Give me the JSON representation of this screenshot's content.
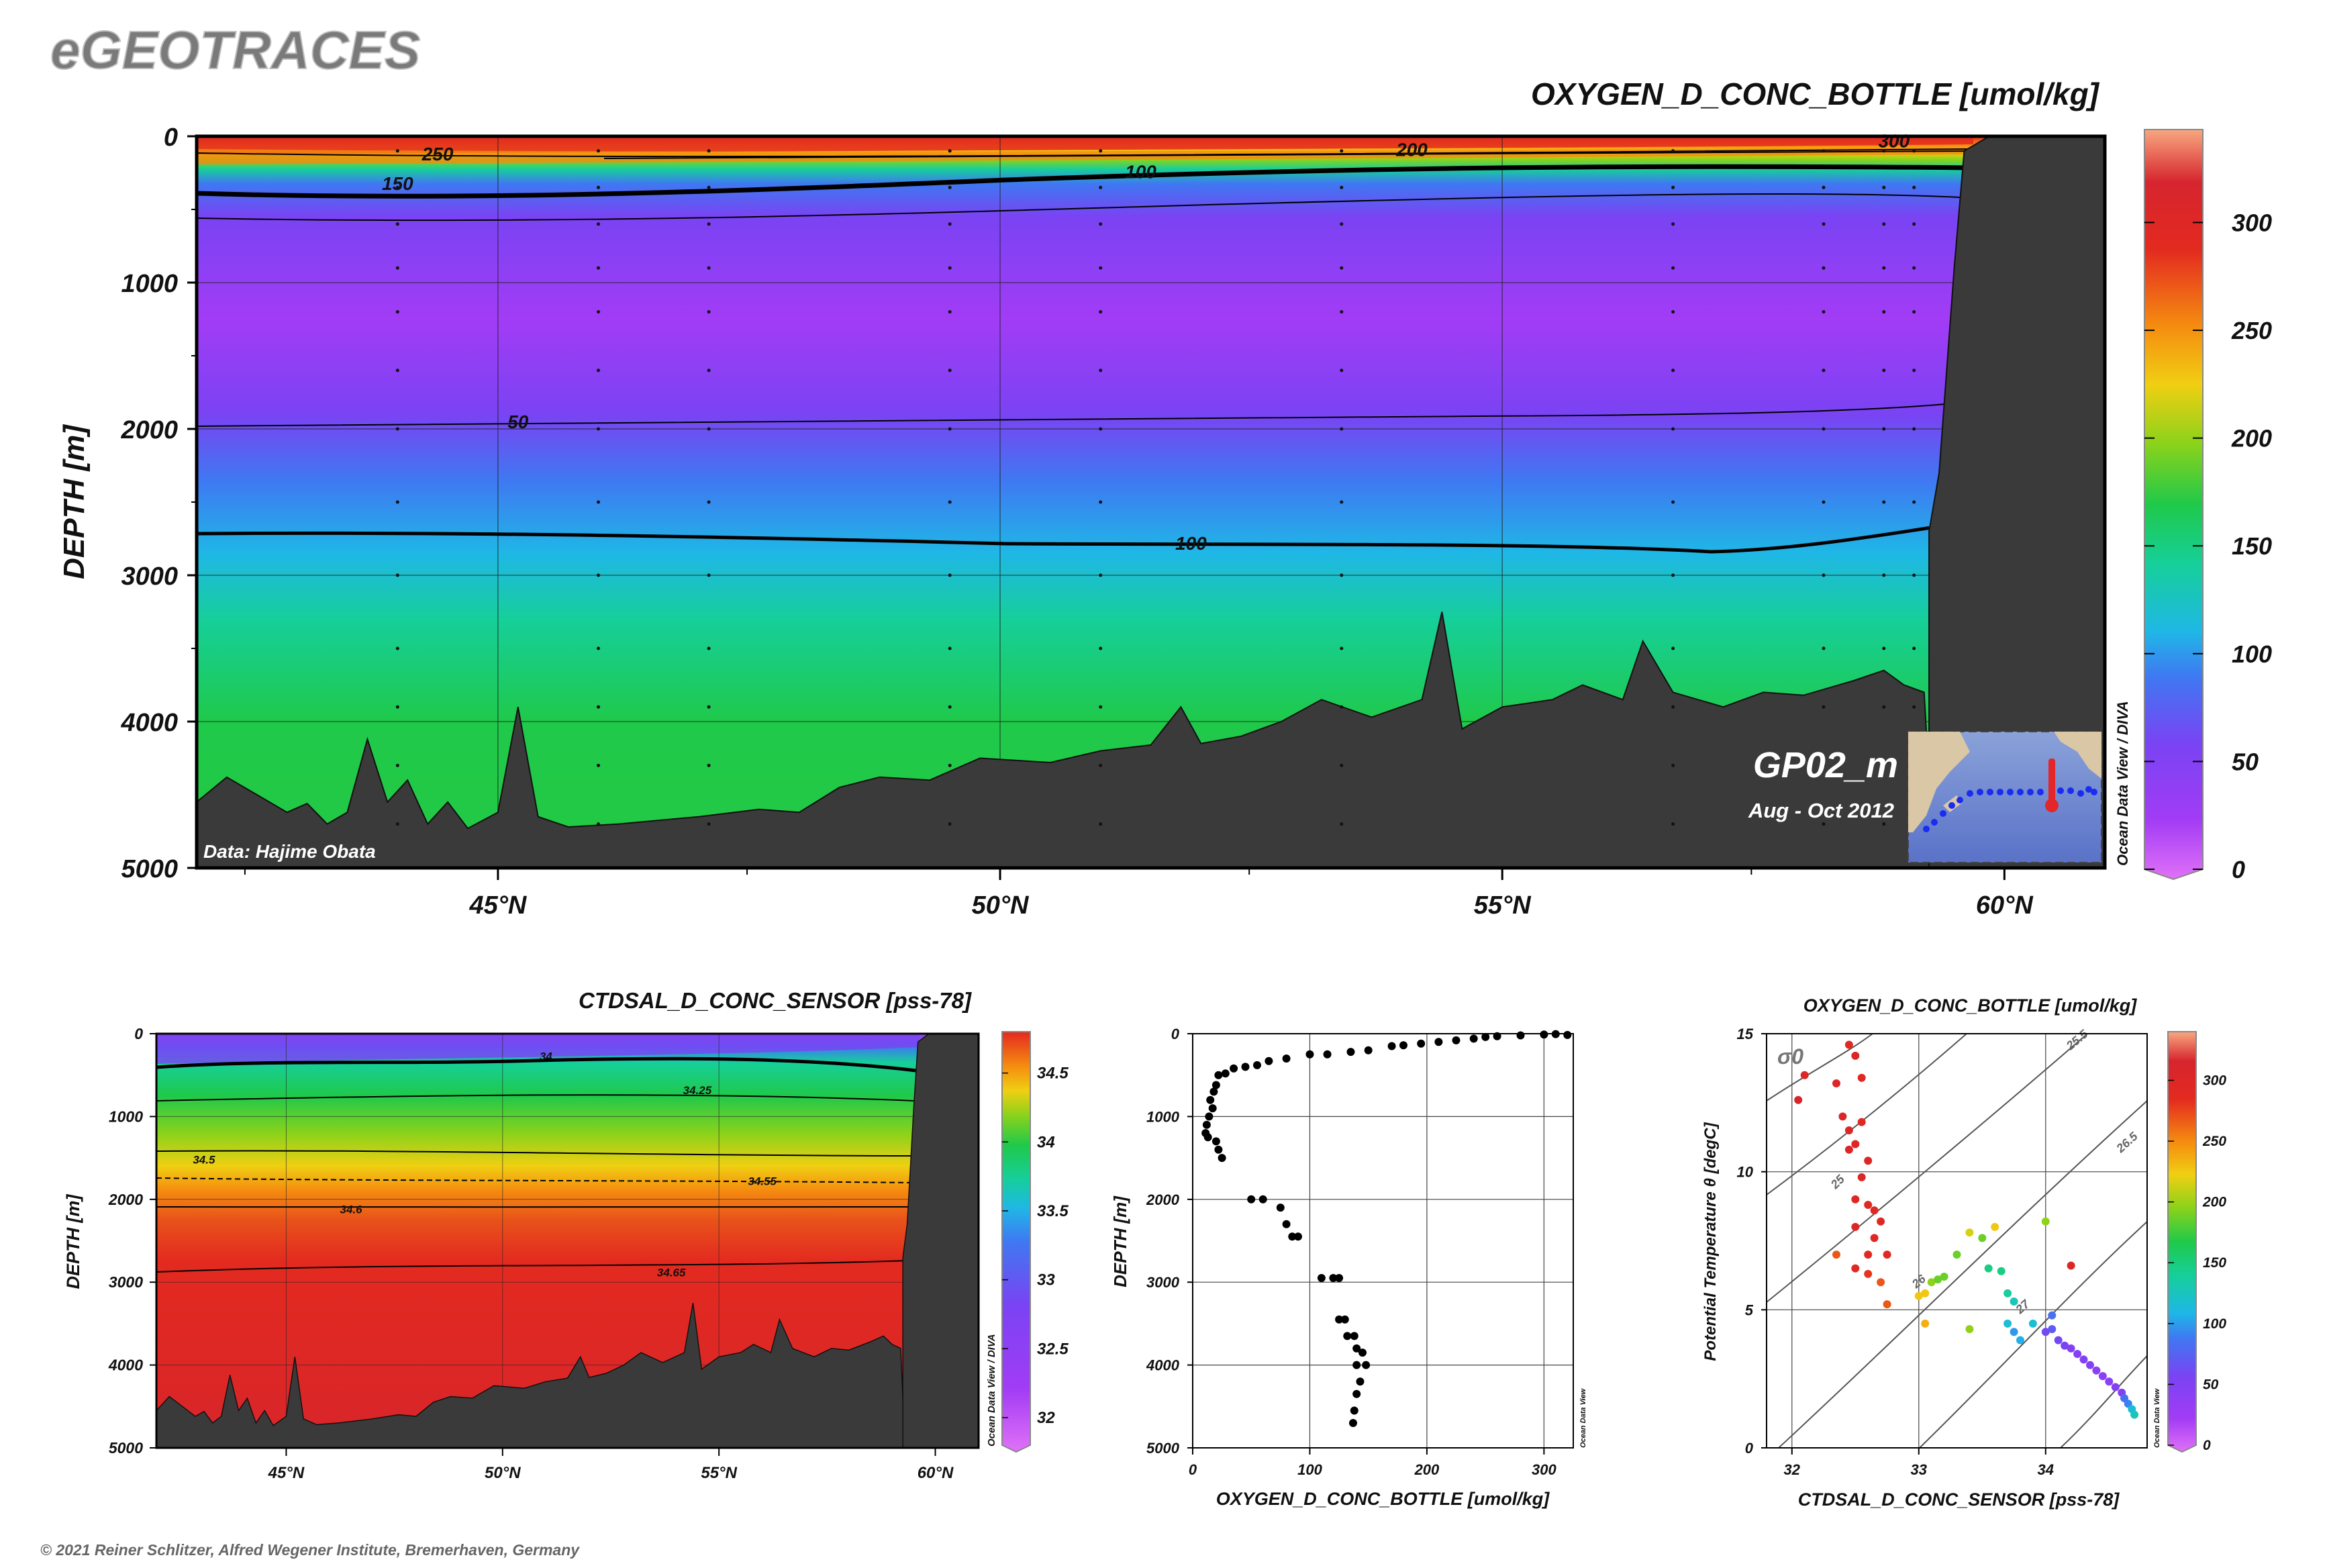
{
  "app": {
    "brand": "eGEOTRACES",
    "copyright": "© 2021 Reiner Schlitzer, Alfred Wegener Institute, Bremerhaven, Germany",
    "watermark": "Ocean Data View / DIVA",
    "watermark_small": "Ocean Data View"
  },
  "colors": {
    "land": "#3a3a3a",
    "scale": [
      "#e071f7",
      "#a23cf5",
      "#7a43f3",
      "#3f78f2",
      "#1fb7e6",
      "#16cf9a",
      "#1fc94a",
      "#8ad21b",
      "#f0cf12",
      "#f58a10",
      "#e32a20",
      "#d6252e",
      "#f8a880"
    ]
  },
  "chart_data": [
    {
      "id": "oxygen_section",
      "type": "heatmap",
      "title": "OXYGEN_D_CONC_BOTTLE [umol/kg]",
      "ylabel": "DEPTH [m]",
      "xlabel": "",
      "xlim": [
        42,
        61
      ],
      "ylim": [
        5000,
        0
      ],
      "x_ticks": [
        {
          "v": 45,
          "label": "45°N"
        },
        {
          "v": 50,
          "label": "50°N"
        },
        {
          "v": 55,
          "label": "55°N"
        },
        {
          "v": 60,
          "label": "60°N"
        }
      ],
      "y_ticks": [
        0,
        1000,
        2000,
        3000,
        4000,
        5000
      ],
      "colorbar": {
        "min": 0,
        "max": 340,
        "ticks": [
          0,
          50,
          100,
          150,
          200,
          250,
          300
        ]
      },
      "grid": true,
      "contour_labels": [
        {
          "text": "150",
          "x": 44.0,
          "depth": 320
        },
        {
          "text": "250",
          "x": 44.4,
          "depth": 120
        },
        {
          "text": "100",
          "x": 51.4,
          "depth": 240
        },
        {
          "text": "200",
          "x": 54.1,
          "depth": 90
        },
        {
          "text": "300",
          "x": 58.9,
          "depth": 30
        },
        {
          "text": "50",
          "x": 45.2,
          "depth": 1950
        },
        {
          "text": "100",
          "x": 51.9,
          "depth": 2780
        }
      ],
      "annotations": {
        "cruise": "GP02_m",
        "period": "Aug - Oct 2012",
        "credit": "Data: Hajime Obata"
      },
      "bottom_depth_profile": [
        [
          42.0,
          4550
        ],
        [
          42.3,
          4380
        ],
        [
          42.6,
          4500
        ],
        [
          42.9,
          4620
        ],
        [
          43.1,
          4560
        ],
        [
          43.3,
          4700
        ],
        [
          43.5,
          4620
        ],
        [
          43.7,
          4120
        ],
        [
          43.9,
          4550
        ],
        [
          44.1,
          4400
        ],
        [
          44.3,
          4700
        ],
        [
          44.5,
          4550
        ],
        [
          44.7,
          4730
        ],
        [
          45.0,
          4620
        ],
        [
          45.2,
          3900
        ],
        [
          45.4,
          4650
        ],
        [
          45.7,
          4720
        ],
        [
          46.2,
          4700
        ],
        [
          47.0,
          4650
        ],
        [
          47.6,
          4600
        ],
        [
          48.0,
          4620
        ],
        [
          48.4,
          4450
        ],
        [
          48.8,
          4380
        ],
        [
          49.3,
          4400
        ],
        [
          49.8,
          4250
        ],
        [
          50.5,
          4280
        ],
        [
          51.0,
          4200
        ],
        [
          51.5,
          4160
        ],
        [
          51.8,
          3900
        ],
        [
          52.0,
          4150
        ],
        [
          52.4,
          4100
        ],
        [
          52.8,
          4000
        ],
        [
          53.2,
          3850
        ],
        [
          53.7,
          3970
        ],
        [
          54.2,
          3850
        ],
        [
          54.4,
          3250
        ],
        [
          54.6,
          4050
        ],
        [
          55.0,
          3900
        ],
        [
          55.5,
          3850
        ],
        [
          55.8,
          3750
        ],
        [
          56.2,
          3850
        ],
        [
          56.4,
          3450
        ],
        [
          56.7,
          3800
        ],
        [
          57.2,
          3900
        ],
        [
          57.6,
          3800
        ],
        [
          58.0,
          3820
        ],
        [
          58.5,
          3720
        ],
        [
          58.8,
          3650
        ],
        [
          59.0,
          3750
        ],
        [
          59.2,
          3800
        ]
      ],
      "continental_slope": [
        [
          59.25,
          5000
        ],
        [
          59.25,
          2700
        ],
        [
          59.35,
          2300
        ],
        [
          59.5,
          900
        ],
        [
          59.6,
          100
        ],
        [
          59.85,
          0
        ],
        [
          61.0,
          0
        ]
      ]
    },
    {
      "id": "salinity_section",
      "type": "heatmap",
      "title": "CTDSAL_D_CONC_SENSOR [pss-78]",
      "ylabel": "DEPTH [m]",
      "xlabel": "",
      "xlim": [
        42,
        61
      ],
      "ylim": [
        5000,
        0
      ],
      "x_ticks": [
        {
          "v": 45,
          "label": "45°N"
        },
        {
          "v": 50,
          "label": "50°N"
        },
        {
          "v": 55,
          "label": "55°N"
        },
        {
          "v": 60,
          "label": "60°N"
        }
      ],
      "y_ticks": [
        0,
        1000,
        2000,
        3000,
        4000,
        5000
      ],
      "colorbar": {
        "min": 31.8,
        "max": 34.8,
        "ticks": [
          32,
          32.5,
          33,
          33.5,
          34,
          34.5
        ]
      },
      "grid": true,
      "contour_labels": [
        {
          "text": "34",
          "x": 51.0,
          "depth": 270
        },
        {
          "text": "34.25",
          "x": 54.5,
          "depth": 680
        },
        {
          "text": "34.5",
          "x": 43.1,
          "depth": 1520
        },
        {
          "text": "34.55",
          "x": 56.0,
          "depth": 1780
        },
        {
          "text": "34.6",
          "x": 46.5,
          "depth": 2120
        },
        {
          "text": "34.65",
          "x": 53.9,
          "depth": 2880
        }
      ]
    },
    {
      "id": "oxygen_profile",
      "type": "scatter",
      "title": "",
      "xlabel": "OXYGEN_D_CONC_BOTTLE [umol/kg]",
      "ylabel": "DEPTH [m]",
      "xlim": [
        0,
        325
      ],
      "ylim": [
        5000,
        0
      ],
      "x_ticks": [
        0,
        100,
        200,
        300
      ],
      "y_ticks": [
        0,
        1000,
        2000,
        3000,
        4000,
        5000
      ],
      "grid": true,
      "points": [
        [
          300,
          10
        ],
        [
          280,
          20
        ],
        [
          310,
          5
        ],
        [
          320,
          15
        ],
        [
          260,
          30
        ],
        [
          250,
          40
        ],
        [
          240,
          60
        ],
        [
          225,
          80
        ],
        [
          210,
          100
        ],
        [
          195,
          120
        ],
        [
          180,
          140
        ],
        [
          170,
          150
        ],
        [
          150,
          200
        ],
        [
          135,
          220
        ],
        [
          115,
          250
        ],
        [
          100,
          250
        ],
        [
          80,
          300
        ],
        [
          65,
          330
        ],
        [
          55,
          380
        ],
        [
          45,
          400
        ],
        [
          35,
          420
        ],
        [
          28,
          480
        ],
        [
          22,
          500
        ],
        [
          20,
          620
        ],
        [
          18,
          700
        ],
        [
          15,
          800
        ],
        [
          17,
          900
        ],
        [
          14,
          1000
        ],
        [
          12,
          1100
        ],
        [
          11,
          1200
        ],
        [
          13,
          1250
        ],
        [
          20,
          1300
        ],
        [
          22,
          1400
        ],
        [
          25,
          1500
        ],
        [
          50,
          2000
        ],
        [
          60,
          2000
        ],
        [
          75,
          2100
        ],
        [
          80,
          2300
        ],
        [
          85,
          2450
        ],
        [
          90,
          2450
        ],
        [
          110,
          2950
        ],
        [
          120,
          2950
        ],
        [
          125,
          2950
        ],
        [
          125,
          3450
        ],
        [
          130,
          3450
        ],
        [
          132,
          3650
        ],
        [
          138,
          3650
        ],
        [
          140,
          3800
        ],
        [
          145,
          3850
        ],
        [
          140,
          4000
        ],
        [
          148,
          4000
        ],
        [
          143,
          4200
        ],
        [
          140,
          4350
        ],
        [
          138,
          4550
        ],
        [
          137,
          4700
        ]
      ]
    },
    {
      "id": "ts_diagram",
      "type": "scatter",
      "title": "OXYGEN_D_CONC_BOTTLE [umol/kg]",
      "xlabel": "CTDSAL_D_CONC_SENSOR [pss-78]",
      "ylabel": "Potential Temperature θ [degC]",
      "sigma_symbol": "σ0",
      "xlim": [
        31.8,
        34.8
      ],
      "ylim": [
        0,
        15
      ],
      "x_ticks": [
        32,
        33,
        34
      ],
      "y_ticks": [
        0,
        5,
        10,
        15
      ],
      "colorbar": {
        "min": 0,
        "max": 340,
        "ticks": [
          0,
          50,
          100,
          150,
          200,
          250,
          300
        ]
      },
      "grid": true,
      "isopycnal_labels": [
        "25",
        "25.5",
        "26",
        "26.5",
        "27"
      ],
      "points": [
        [
          32.05,
          12.6,
          310
        ],
        [
          32.1,
          13.5,
          300
        ],
        [
          32.35,
          13.2,
          300
        ],
        [
          32.45,
          14.6,
          290
        ],
        [
          32.5,
          14.2,
          300
        ],
        [
          32.55,
          13.4,
          295
        ],
        [
          32.4,
          12.0,
          300
        ],
        [
          32.45,
          11.5,
          300
        ],
        [
          32.5,
          11.0,
          295
        ],
        [
          32.45,
          10.8,
          300
        ],
        [
          32.55,
          11.8,
          290
        ],
        [
          32.6,
          10.4,
          300
        ],
        [
          32.55,
          9.8,
          300
        ],
        [
          32.5,
          9.0,
          295
        ],
        [
          32.6,
          8.8,
          290
        ],
        [
          32.65,
          8.6,
          290
        ],
        [
          32.7,
          8.2,
          295
        ],
        [
          32.5,
          8.0,
          300
        ],
        [
          32.65,
          7.6,
          295
        ],
        [
          32.6,
          7.0,
          290
        ],
        [
          32.75,
          7.0,
          290
        ],
        [
          32.5,
          6.5,
          290
        ],
        [
          32.6,
          6.3,
          280
        ],
        [
          32.7,
          6.0,
          270
        ],
        [
          32.75,
          5.2,
          270
        ],
        [
          32.35,
          7.0,
          270
        ],
        [
          33.0,
          5.5,
          230
        ],
        [
          33.05,
          5.6,
          230
        ],
        [
          33.1,
          6.0,
          200
        ],
        [
          33.15,
          6.1,
          190
        ],
        [
          33.2,
          6.2,
          190
        ],
        [
          33.3,
          7.0,
          190
        ],
        [
          33.4,
          7.8,
          220
        ],
        [
          33.5,
          7.6,
          190
        ],
        [
          33.6,
          8.0,
          230
        ],
        [
          33.55,
          6.5,
          150
        ],
        [
          33.65,
          6.4,
          150
        ],
        [
          33.7,
          5.6,
          140
        ],
        [
          33.75,
          5.3,
          130
        ],
        [
          33.7,
          4.5,
          120
        ],
        [
          33.75,
          4.2,
          100
        ],
        [
          33.8,
          3.9,
          110
        ],
        [
          33.05,
          4.5,
          240
        ],
        [
          33.4,
          4.3,
          200
        ],
        [
          33.9,
          4.5,
          120
        ],
        [
          34.0,
          8.2,
          200
        ],
        [
          34.0,
          4.2,
          60
        ],
        [
          34.05,
          4.3,
          70
        ],
        [
          34.1,
          3.9,
          60
        ],
        [
          34.15,
          3.7,
          55
        ],
        [
          34.2,
          3.6,
          50
        ],
        [
          34.25,
          3.4,
          50
        ],
        [
          34.3,
          3.2,
          50
        ],
        [
          34.35,
          3.0,
          50
        ],
        [
          34.4,
          2.8,
          45
        ],
        [
          34.45,
          2.6,
          45
        ],
        [
          34.5,
          2.4,
          45
        ],
        [
          34.55,
          2.2,
          50
        ],
        [
          34.6,
          2.0,
          50
        ],
        [
          34.62,
          1.8,
          80
        ],
        [
          34.65,
          1.6,
          90
        ],
        [
          34.68,
          1.4,
          120
        ],
        [
          34.7,
          1.2,
          130
        ],
        [
          34.2,
          6.6,
          300
        ],
        [
          34.05,
          4.8,
          80
        ]
      ]
    }
  ]
}
